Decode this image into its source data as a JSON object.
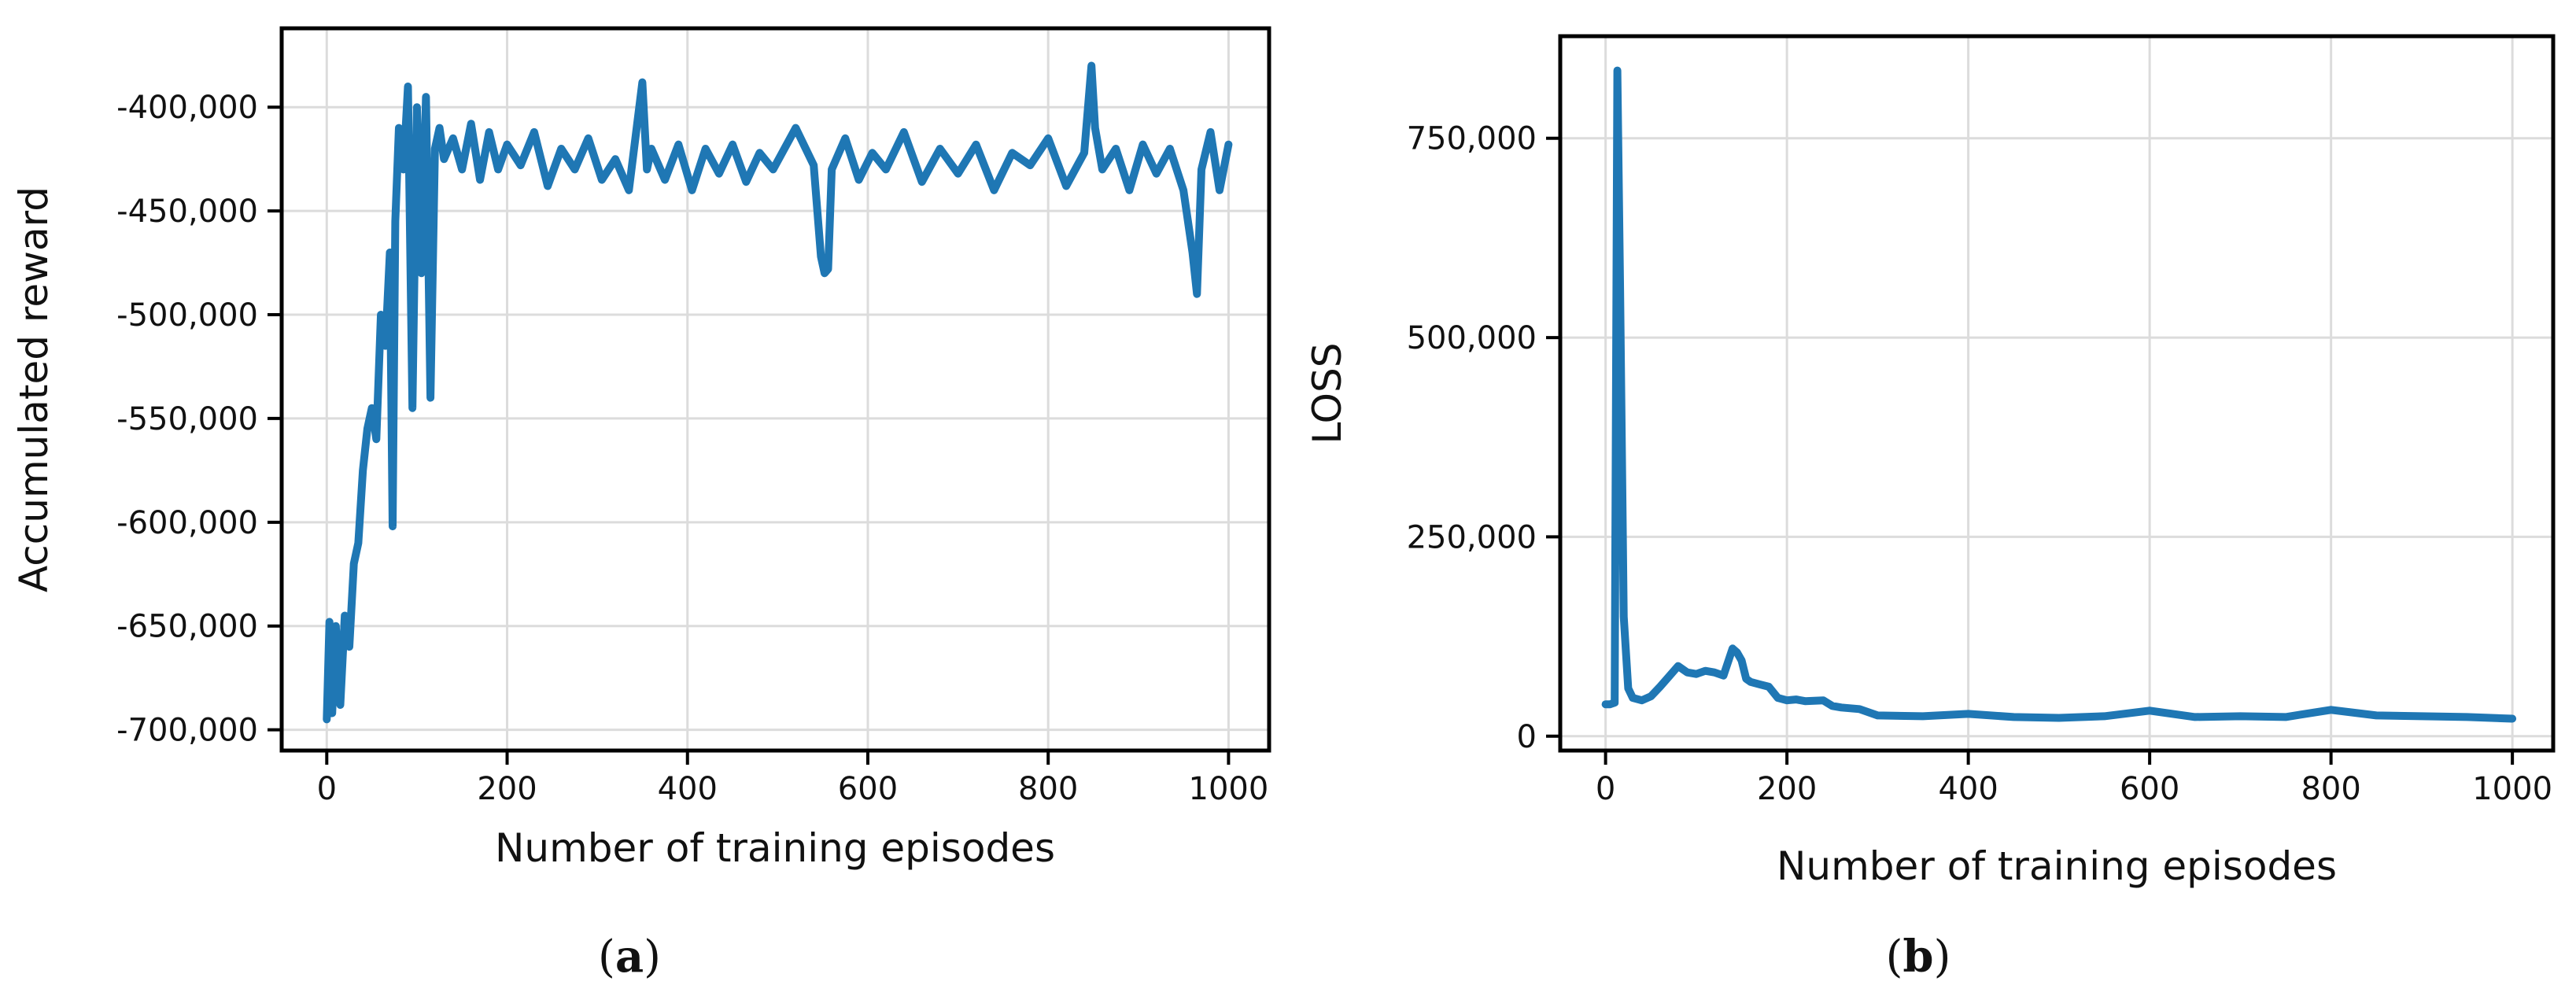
{
  "chart_data": [
    {
      "type": "line",
      "panel_label": "a",
      "xlabel": "Number of training episodes",
      "ylabel": "Accumulated reward",
      "xlim": [
        -50,
        1045
      ],
      "ylim": [
        -710000,
        -362000
      ],
      "xticks": [
        0,
        200,
        400,
        600,
        800,
        1000
      ],
      "xtick_labels": [
        "0",
        "200",
        "400",
        "600",
        "800",
        "1000"
      ],
      "yticks": [
        -700000,
        -650000,
        -600000,
        -550000,
        -500000,
        -450000,
        -400000
      ],
      "ytick_labels": [
        "-700,000",
        "-650,000",
        "-600,000",
        "-550,000",
        "-500,000",
        "-450,000",
        "-400,000"
      ],
      "grid": true,
      "line_color": "#1f77b4",
      "series": [
        {
          "x": [
            0,
            3,
            6,
            10,
            15,
            20,
            25,
            30,
            35,
            40,
            45,
            50,
            55,
            60,
            65,
            70,
            73,
            76,
            80,
            85,
            90,
            95,
            100,
            105,
            110,
            115,
            120,
            125,
            130,
            140,
            150,
            160,
            170,
            180,
            190,
            200,
            215,
            230,
            245,
            260,
            275,
            290,
            305,
            320,
            335,
            350,
            355,
            360,
            375,
            390,
            405,
            420,
            435,
            450,
            465,
            480,
            495,
            520,
            540,
            548,
            552,
            556,
            560,
            575,
            590,
            605,
            620,
            640,
            660,
            680,
            700,
            720,
            740,
            760,
            780,
            800,
            820,
            840,
            848,
            852,
            860,
            875,
            890,
            905,
            920,
            935,
            950,
            960,
            965,
            970,
            980,
            990,
            1000
          ],
          "y": [
            -695000,
            -648000,
            -692000,
            -650000,
            -688000,
            -645000,
            -660000,
            -620000,
            -610000,
            -575000,
            -555000,
            -545000,
            -560000,
            -500000,
            -515000,
            -470000,
            -602000,
            -455000,
            -410000,
            -430000,
            -390000,
            -545000,
            -400000,
            -480000,
            -395000,
            -540000,
            -420000,
            -410000,
            -425000,
            -415000,
            -430000,
            -408000,
            -435000,
            -412000,
            -430000,
            -418000,
            -428000,
            -412000,
            -438000,
            -420000,
            -430000,
            -415000,
            -435000,
            -425000,
            -440000,
            -388000,
            -430000,
            -420000,
            -435000,
            -418000,
            -440000,
            -420000,
            -432000,
            -418000,
            -436000,
            -422000,
            -430000,
            -410000,
            -428000,
            -472000,
            -480000,
            -478000,
            -430000,
            -415000,
            -435000,
            -422000,
            -430000,
            -412000,
            -436000,
            -420000,
            -432000,
            -418000,
            -440000,
            -422000,
            -428000,
            -415000,
            -438000,
            -422000,
            -380000,
            -410000,
            -430000,
            -420000,
            -440000,
            -418000,
            -432000,
            -420000,
            -440000,
            -470000,
            -490000,
            -430000,
            -412000,
            -440000,
            -418000
          ]
        }
      ]
    },
    {
      "type": "line",
      "panel_label": "b",
      "xlabel": "Number of training episodes",
      "ylabel": "LOSS",
      "xlim": [
        -50,
        1045
      ],
      "ylim": [
        -18000,
        878000
      ],
      "xticks": [
        0,
        200,
        400,
        600,
        800,
        1000
      ],
      "xtick_labels": [
        "0",
        "200",
        "400",
        "600",
        "800",
        "1000"
      ],
      "yticks": [
        0,
        250000,
        500000,
        750000
      ],
      "ytick_labels": [
        "0",
        "250,000",
        "500,000",
        "750,000"
      ],
      "grid": true,
      "line_color": "#1f77b4",
      "series": [
        {
          "x": [
            0,
            5,
            10,
            13,
            16,
            20,
            25,
            30,
            40,
            50,
            60,
            70,
            80,
            90,
            100,
            110,
            120,
            130,
            140,
            145,
            150,
            155,
            160,
            170,
            180,
            190,
            200,
            210,
            220,
            240,
            250,
            260,
            280,
            300,
            350,
            400,
            450,
            500,
            550,
            600,
            650,
            700,
            750,
            800,
            850,
            900,
            950,
            1000
          ],
          "y": [
            40000,
            40000,
            42000,
            835000,
            560000,
            150000,
            60000,
            48000,
            45000,
            50000,
            62000,
            75000,
            88000,
            80000,
            78000,
            82000,
            80000,
            76000,
            110000,
            105000,
            95000,
            72000,
            68000,
            65000,
            62000,
            48000,
            45000,
            46000,
            44000,
            45000,
            38000,
            36000,
            34000,
            26000,
            25000,
            28000,
            24000,
            23000,
            25000,
            32000,
            24000,
            25000,
            24000,
            33000,
            26000,
            25000,
            24000,
            22000
          ]
        }
      ]
    }
  ],
  "captions": [
    "(a)",
    "(b)"
  ]
}
